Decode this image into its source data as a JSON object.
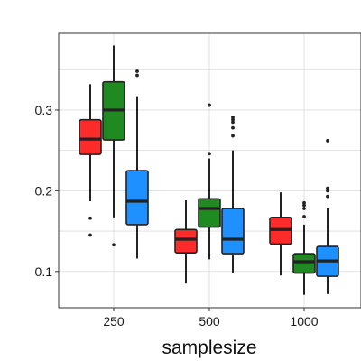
{
  "chart_data": {
    "type": "box",
    "title": "",
    "xlabel": "samplesize",
    "ylabel": "",
    "categories": [
      "250",
      "500",
      "1000"
    ],
    "y_ticks": [
      0.1,
      0.2,
      0.3
    ],
    "ylim": [
      0.055,
      0.395
    ],
    "grid": true,
    "legend": "none",
    "series": [
      {
        "color": "#ff2a2a",
        "boxes": [
          {
            "lower_whisker": 0.187,
            "q1": 0.245,
            "median": 0.264,
            "q3": 0.288,
            "upper_whisker": 0.332,
            "outliers": [
              0.166,
              0.145
            ]
          },
          {
            "lower_whisker": 0.085,
            "q1": 0.123,
            "median": 0.14,
            "q3": 0.152,
            "upper_whisker": 0.188,
            "outliers": []
          },
          {
            "lower_whisker": 0.095,
            "q1": 0.134,
            "median": 0.152,
            "q3": 0.167,
            "upper_whisker": 0.198,
            "outliers": []
          }
        ]
      },
      {
        "color": "#1f8a1f",
        "boxes": [
          {
            "lower_whisker": 0.167,
            "q1": 0.263,
            "median": 0.3,
            "q3": 0.335,
            "upper_whisker": 0.38,
            "outliers": [
              0.133
            ]
          },
          {
            "lower_whisker": 0.115,
            "q1": 0.155,
            "median": 0.178,
            "q3": 0.19,
            "upper_whisker": 0.24,
            "outliers": [
              0.306,
              0.246
            ]
          },
          {
            "lower_whisker": 0.071,
            "q1": 0.098,
            "median": 0.112,
            "q3": 0.122,
            "upper_whisker": 0.158,
            "outliers": [
              0.185,
              0.182,
              0.178,
              0.168
            ]
          }
        ]
      },
      {
        "color": "#1e90ff",
        "boxes": [
          {
            "lower_whisker": 0.116,
            "q1": 0.158,
            "median": 0.187,
            "q3": 0.225,
            "upper_whisker": 0.317,
            "outliers": [
              0.348,
              0.343
            ]
          },
          {
            "lower_whisker": 0.098,
            "q1": 0.122,
            "median": 0.14,
            "q3": 0.178,
            "upper_whisker": 0.25,
            "outliers": [
              0.291,
              0.288,
              0.285,
              0.278,
              0.268
            ]
          },
          {
            "lower_whisker": 0.072,
            "q1": 0.094,
            "median": 0.113,
            "q3": 0.131,
            "upper_whisker": 0.179,
            "outliers": [
              0.262,
              0.203,
              0.2,
              0.193
            ]
          }
        ]
      }
    ]
  }
}
